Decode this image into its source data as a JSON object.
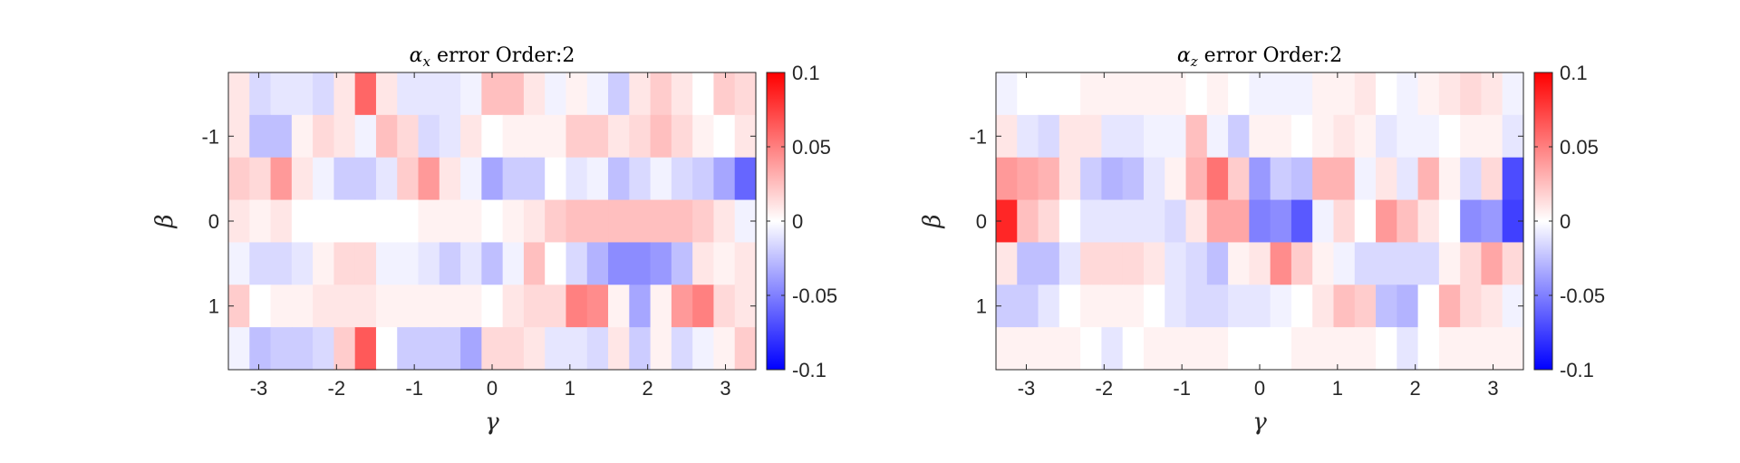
{
  "chart_data": [
    {
      "type": "heatmap",
      "title": "αx error Order:2",
      "title_main": "α",
      "title_sub": "x",
      "title_rest": " error Order:2",
      "xlabel": "γ",
      "ylabel": "β",
      "xlim": [
        -3.39,
        3.39
      ],
      "ylim_display": [
        -1.75,
        1.75
      ],
      "y_direction": "reversed (-1 at top)",
      "x_ticks": [
        -3,
        -2,
        -1,
        0,
        1,
        2,
        3
      ],
      "x_tick_labels": [
        "-3",
        "-2",
        "-1",
        "0",
        "1",
        "2",
        "3"
      ],
      "y_ticks": [
        -1,
        0,
        1
      ],
      "y_tick_labels": [
        "-1",
        "0",
        "1"
      ],
      "x_centers": [
        -3.14,
        -2.88,
        -2.62,
        -2.36,
        -2.09,
        -1.83,
        -1.57,
        -1.31,
        -1.05,
        -0.79,
        -0.52,
        -0.26,
        0.0,
        0.26,
        0.52,
        0.79,
        1.05,
        1.31,
        1.57,
        1.83,
        2.09,
        2.36,
        2.62,
        2.88,
        3.14
      ],
      "y_centers": [
        -1.5,
        -1.0,
        -0.5,
        0.0,
        0.5,
        1.0,
        1.5
      ],
      "colorbar": {
        "min": -0.1,
        "max": 0.1,
        "ticks": [
          0.1,
          0.05,
          0,
          -0.05,
          -0.1
        ],
        "tick_labels": [
          "0.1",
          "0.05",
          "0",
          "-0.05",
          "-0.1"
        ],
        "colors": {
          "max": "#ff0000",
          "mid": "#ffffff",
          "min": "#0000ff"
        }
      },
      "z": [
        [
          0.01,
          -0.015,
          -0.01,
          -0.01,
          -0.015,
          0.01,
          0.06,
          0.01,
          -0.01,
          -0.01,
          -0.01,
          -0.005,
          0.025,
          0.025,
          0.01,
          -0.005,
          0.005,
          -0.005,
          -0.02,
          0.01,
          0.02,
          0.01,
          0.0,
          0.02,
          0.015
        ],
        [
          0.01,
          -0.025,
          -0.025,
          0.005,
          0.015,
          0.01,
          -0.005,
          0.025,
          0.015,
          -0.015,
          -0.01,
          0.01,
          0.0,
          0.005,
          0.005,
          0.005,
          0.02,
          0.02,
          0.01,
          0.015,
          0.025,
          0.015,
          0.005,
          0.0,
          0.01
        ],
        [
          0.02,
          0.015,
          0.04,
          0.01,
          -0.005,
          -0.02,
          -0.02,
          -0.01,
          0.02,
          0.04,
          0.01,
          -0.005,
          -0.035,
          -0.02,
          -0.02,
          0.0,
          -0.01,
          -0.005,
          -0.025,
          -0.015,
          -0.005,
          -0.015,
          -0.02,
          -0.035,
          -0.06
        ],
        [
          0.01,
          0.005,
          0.01,
          0.0,
          0.0,
          0.0,
          0.0,
          0.0,
          0.0,
          0.005,
          0.005,
          0.005,
          0.0,
          0.005,
          0.01,
          0.02,
          0.025,
          0.025,
          0.025,
          0.025,
          0.025,
          0.025,
          0.02,
          0.01,
          -0.005
        ],
        [
          -0.005,
          -0.015,
          -0.015,
          -0.01,
          0.005,
          0.015,
          0.015,
          -0.005,
          -0.005,
          -0.01,
          -0.02,
          -0.01,
          -0.025,
          -0.005,
          0.025,
          0.0,
          -0.015,
          -0.03,
          -0.045,
          -0.045,
          -0.04,
          -0.025,
          0.01,
          0.005,
          0.01
        ],
        [
          0.02,
          0.0,
          0.005,
          0.005,
          0.01,
          0.01,
          0.01,
          0.005,
          0.005,
          0.005,
          0.005,
          0.005,
          0.0,
          0.01,
          0.015,
          0.015,
          0.05,
          0.045,
          0.005,
          -0.035,
          0.005,
          0.04,
          0.05,
          0.015,
          0.01
        ],
        [
          -0.005,
          -0.025,
          -0.02,
          -0.02,
          -0.015,
          0.02,
          0.065,
          0.0,
          -0.02,
          -0.02,
          -0.02,
          -0.035,
          0.015,
          0.015,
          0.01,
          -0.01,
          -0.01,
          -0.015,
          0.01,
          -0.02,
          0.005,
          -0.015,
          -0.005,
          0.005,
          0.02
        ]
      ]
    },
    {
      "type": "heatmap",
      "title": "αz error Order:2",
      "title_main": "α",
      "title_sub": "z",
      "title_rest": " error Order:2",
      "xlabel": "γ",
      "ylabel": "β",
      "xlim": [
        -3.39,
        3.39
      ],
      "ylim_display": [
        -1.75,
        1.75
      ],
      "y_direction": "reversed (-1 at top)",
      "x_ticks": [
        -3,
        -2,
        -1,
        0,
        1,
        2,
        3
      ],
      "x_tick_labels": [
        "-3",
        "-2",
        "-1",
        "0",
        "1",
        "2",
        "3"
      ],
      "y_ticks": [
        -1,
        0,
        1
      ],
      "y_tick_labels": [
        "-1",
        "0",
        "1"
      ],
      "x_centers": [
        -3.14,
        -2.88,
        -2.62,
        -2.36,
        -2.09,
        -1.83,
        -1.57,
        -1.31,
        -1.05,
        -0.79,
        -0.52,
        -0.26,
        0.0,
        0.26,
        0.52,
        0.79,
        1.05,
        1.31,
        1.57,
        1.83,
        2.09,
        2.36,
        2.62,
        2.88,
        3.14
      ],
      "y_centers": [
        -1.5,
        -1.0,
        -0.5,
        0.0,
        0.5,
        1.0,
        1.5
      ],
      "colorbar": {
        "min": -0.1,
        "max": 0.1,
        "ticks": [
          0.1,
          0.05,
          0,
          -0.05,
          -0.1
        ],
        "tick_labels": [
          "0.1",
          "0.05",
          "0",
          "-0.05",
          "-0.1"
        ],
        "colors": {
          "max": "#ff0000",
          "mid": "#ffffff",
          "min": "#0000ff"
        }
      },
      "z": [
        [
          -0.005,
          0.0,
          0.0,
          0.0,
          0.005,
          0.005,
          0.005,
          0.005,
          0.005,
          0.0,
          0.005,
          0.0,
          -0.005,
          -0.005,
          -0.005,
          0.005,
          0.005,
          0.01,
          0.0,
          -0.005,
          0.005,
          0.01,
          0.015,
          0.01,
          -0.005
        ],
        [
          0.01,
          -0.01,
          -0.015,
          0.01,
          0.01,
          -0.01,
          -0.01,
          -0.005,
          -0.005,
          0.025,
          -0.005,
          -0.02,
          0.005,
          0.005,
          0.0,
          0.005,
          0.01,
          0.005,
          -0.01,
          -0.005,
          -0.005,
          0.0,
          0.005,
          0.005,
          -0.01
        ],
        [
          0.04,
          0.035,
          0.03,
          0.01,
          -0.02,
          -0.03,
          -0.025,
          -0.01,
          0.005,
          0.03,
          0.055,
          0.02,
          -0.04,
          -0.02,
          -0.025,
          0.03,
          0.03,
          -0.005,
          0.01,
          -0.01,
          0.03,
          0.005,
          -0.015,
          0.015,
          -0.07
        ],
        [
          0.085,
          0.025,
          0.015,
          0.0,
          -0.01,
          -0.01,
          -0.01,
          -0.01,
          -0.015,
          0.01,
          0.035,
          0.035,
          -0.05,
          -0.045,
          -0.065,
          -0.005,
          0.015,
          0.0,
          0.04,
          0.025,
          0.01,
          0.0,
          -0.045,
          -0.04,
          -0.075
        ],
        [
          0.01,
          -0.025,
          -0.025,
          -0.01,
          0.015,
          0.015,
          0.015,
          0.01,
          -0.01,
          -0.015,
          -0.025,
          0.005,
          0.01,
          0.045,
          0.02,
          0.005,
          -0.005,
          -0.015,
          -0.015,
          -0.015,
          -0.015,
          0.005,
          0.015,
          0.035,
          0.015
        ],
        [
          -0.02,
          -0.02,
          -0.01,
          0.0,
          0.005,
          0.005,
          0.005,
          0.0,
          -0.01,
          -0.015,
          -0.015,
          -0.01,
          -0.01,
          -0.005,
          0.0,
          0.01,
          0.025,
          0.02,
          -0.025,
          -0.03,
          0.0,
          0.03,
          0.015,
          0.01,
          -0.005
        ],
        [
          0.005,
          0.005,
          0.005,
          0.005,
          0.0,
          -0.01,
          0.0,
          0.005,
          0.005,
          0.005,
          0.005,
          0.0,
          0.0,
          0.0,
          0.005,
          0.005,
          0.005,
          0.005,
          0.0,
          -0.01,
          0.0,
          0.005,
          0.005,
          0.005,
          0.005
        ]
      ]
    }
  ]
}
